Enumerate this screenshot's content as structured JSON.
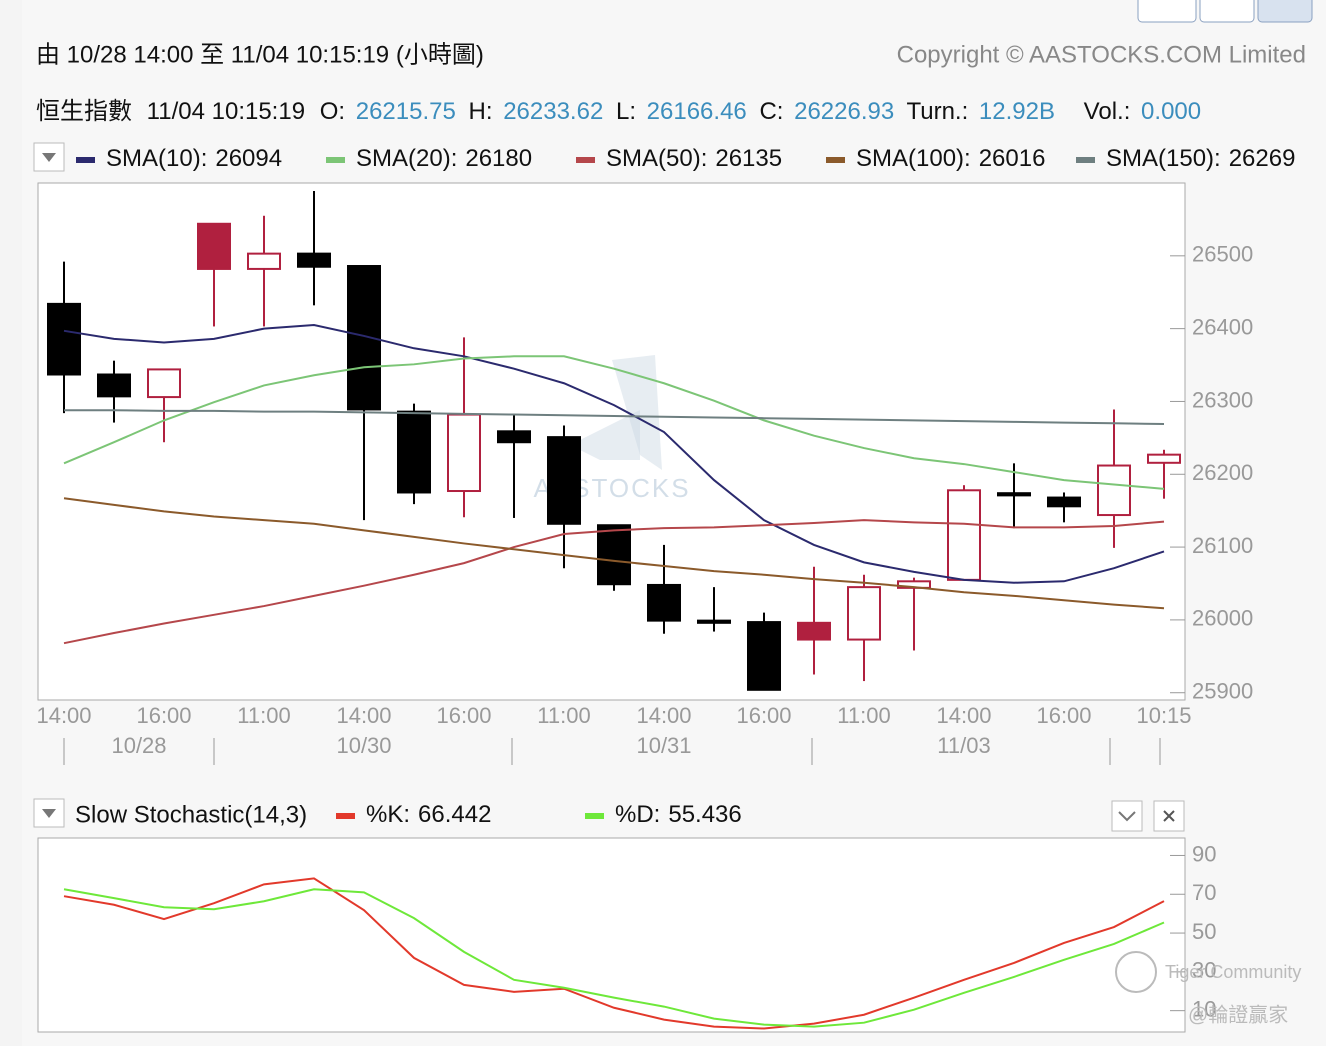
{
  "header": {
    "range_text": "由  10/28 14:00 至  11/04 10:15:19 (小時圖)",
    "copyright": "Copyright © AASTOCKS.COM Limited",
    "name": "恒生指數",
    "time": "11/04 10:15:19",
    "open_label": "O:",
    "high_label": "H:",
    "low_label": "L:",
    "close_label": "C:",
    "turnover_label": "Turn.:",
    "turnover": "12.92B",
    "volume_label": "Vol.:",
    "volume": "0.000",
    "watermark": "AASTOCKS",
    "community": "Tiger Community",
    "credit": "@輪證贏家"
  },
  "chart_data": [
    {
      "type": "candlestick",
      "categories": [
        "14:00",
        null,
        "16:00",
        null,
        "11:00",
        null,
        "14:00",
        null,
        "16:00",
        null,
        "11:00",
        null,
        "14:00",
        null,
        "16:00",
        null,
        "11:00",
        null,
        "14:00",
        null,
        "16:00",
        null,
        "10:15"
      ],
      "date_labels": [
        null,
        "10/28",
        null,
        null,
        null,
        null,
        "10/30",
        null,
        null,
        null,
        null,
        null,
        "10/31",
        null,
        null,
        null,
        null,
        null,
        "11/03",
        null,
        null,
        null,
        null
      ],
      "ohlc": {
        "open": [
          26434,
          26337,
          26306,
          26544,
          26482,
          26503,
          26486,
          26286,
          26177,
          26259,
          26251,
          26130,
          26048,
          25999,
          25997,
          25996,
          25973,
          26044,
          26055,
          26174,
          26168,
          26144,
          26215.75
        ],
        "high": [
          26492,
          26356,
          26344,
          26544,
          26555,
          26589,
          26486,
          26297,
          26388,
          26282,
          26267,
          26130,
          26103,
          26045,
          26010,
          26073,
          26062,
          26058,
          26185,
          26215,
          26175,
          26289,
          26233.62
        ],
        "low": [
          26284,
          26271,
          26244,
          26403,
          26403,
          26432,
          26137,
          26159,
          26141,
          26140,
          26071,
          26040,
          25981,
          25984,
          25904,
          25925,
          25916,
          25958,
          26055,
          26126,
          26134,
          26099,
          26166.46
        ],
        "close": [
          26337,
          26307,
          26344,
          26482,
          26503,
          26485,
          26289,
          26175,
          26282,
          26244,
          26132,
          26049,
          25999,
          25996,
          25904,
          25973,
          26045,
          26053,
          26178,
          26171,
          26156,
          26212,
          26226.93
        ],
        "colors": [
          "#000000",
          "#000000",
          "#b0203f",
          "#b0203f",
          "#b0203f",
          "#000000",
          "#000000",
          "#000000",
          "#b0203f",
          "#000000",
          "#000000",
          "#000000",
          "#000000",
          "#000000",
          "#000000",
          "#b0203f",
          "#b0203f",
          "#b0203f",
          "#b0203f",
          "#000000",
          "#000000",
          "#b0203f",
          "#b0203f"
        ],
        "hollow": [
          false,
          false,
          true,
          false,
          true,
          false,
          false,
          false,
          true,
          false,
          false,
          false,
          false,
          false,
          false,
          false,
          true,
          true,
          true,
          false,
          false,
          true,
          true
        ]
      },
      "series": [
        {
          "name": "SMA(10):",
          "color": "#2b2a6e",
          "values": [
            26397,
            26386,
            26381,
            26386,
            26400,
            26405,
            26390,
            26373,
            26362,
            26345,
            26325,
            26295,
            26258,
            26192,
            26137,
            26103,
            26079,
            26066,
            26055,
            26051,
            26053,
            26071,
            26094
          ]
        },
        {
          "name": "SMA(20):",
          "color": "#7cc576",
          "values": [
            26215,
            26244,
            26274,
            26299,
            26322,
            26336,
            26347,
            26351,
            26359,
            26362,
            26362,
            26345,
            26325,
            26301,
            26274,
            26253,
            26236,
            26222,
            26214,
            26203,
            26192,
            26186,
            26180
          ]
        },
        {
          "name": "SMA(50):",
          "color": "#b5474b",
          "values": [
            25968,
            25982,
            25995,
            26007,
            26019,
            26033,
            26047,
            26062,
            26078,
            26100,
            26118,
            26123,
            26126,
            26127,
            26130,
            26133,
            26137,
            26134,
            26132,
            26127,
            26127,
            26129,
            26135
          ]
        },
        {
          "name": "SMA(100):",
          "color": "#8b5a2b",
          "values": [
            26167,
            26158,
            26149,
            26142,
            26137,
            26132,
            26123,
            26114,
            26105,
            26097,
            26089,
            26081,
            26074,
            26067,
            26062,
            26056,
            26051,
            26045,
            26038,
            26033,
            26027,
            26021,
            26016
          ]
        },
        {
          "name": "SMA(150):",
          "color": "#6e7f80",
          "values": [
            26288,
            26288,
            26287,
            26287,
            26286,
            26286,
            26285,
            26284,
            26283,
            26282,
            26281,
            26280,
            26279,
            26278,
            26277,
            26276,
            26275,
            26274,
            26273,
            26272,
            26271,
            26270,
            26269
          ]
        }
      ],
      "ylim": [
        25890,
        26600
      ],
      "yticks": [
        25900,
        26000,
        26100,
        26200,
        26300,
        26400,
        26500
      ],
      "grid": false
    },
    {
      "type": "line",
      "title": "Slow Stochastic(14,3)",
      "series": [
        {
          "name": "%K:",
          "color": "#e2392b",
          "values": [
            69,
            64.6,
            57.2,
            65.4,
            75.1,
            78.2,
            61.8,
            37.2,
            23.3,
            19.7,
            21.3,
            11.5,
            5.4,
            1.8,
            0.8,
            3.3,
            7.9,
            16.7,
            25.9,
            34.6,
            44.9,
            53.1,
            66.442
          ]
        },
        {
          "name": "%D:",
          "color": "#6ee83a",
          "values": [
            72.6,
            68,
            63.3,
            62.3,
            66.4,
            72.6,
            71,
            57.7,
            40.3,
            25.9,
            21.8,
            16.7,
            12.1,
            5.9,
            2.8,
            1.8,
            3.8,
            10.5,
            19.2,
            27.4,
            36.2,
            44.4,
            55.436
          ]
        }
      ],
      "ylim": [
        -1,
        99
      ],
      "yticks": [
        10,
        30,
        50,
        70,
        90
      ],
      "grid": false
    }
  ]
}
